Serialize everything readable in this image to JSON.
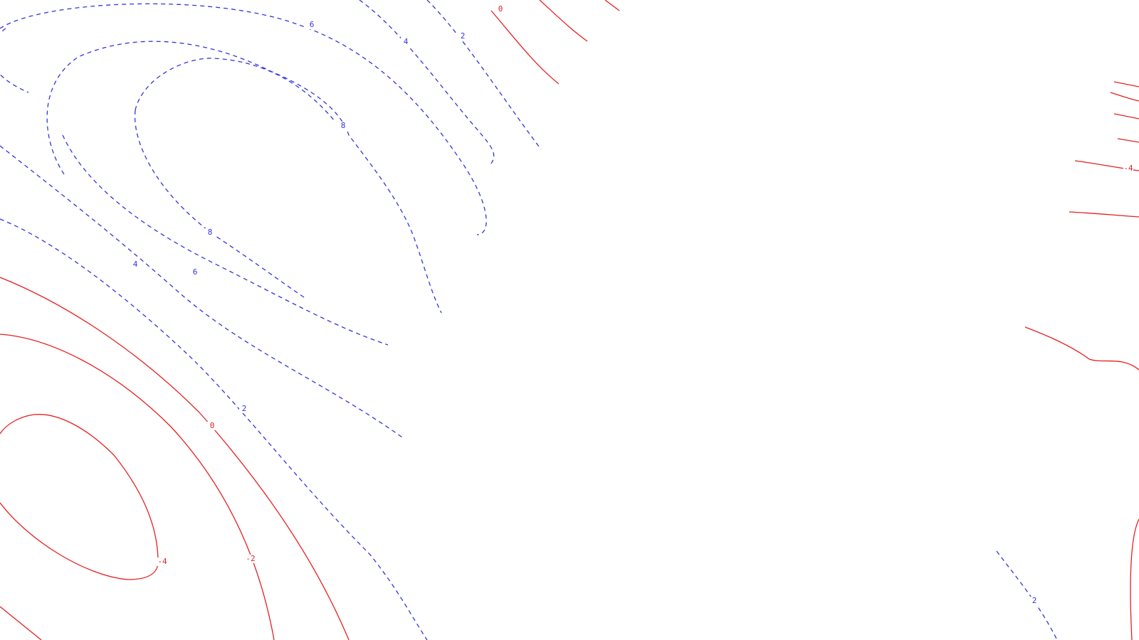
{
  "chart_data": {
    "type": "contour",
    "title": "",
    "xlabel": "",
    "ylabel": "",
    "grid": false,
    "legend": "none",
    "colors": {
      "positive": "#3333dd",
      "nonpositive": "#e62020"
    },
    "line_styles": {
      "positive": "dashed",
      "nonpositive": "solid"
    },
    "levels": [
      -4,
      -2,
      0,
      2,
      4,
      6,
      8
    ],
    "contour_labels": [
      {
        "id": "neg4-left",
        "text": "-4",
        "level": -4
      },
      {
        "id": "neg2-left",
        "text": "-2",
        "level": -2
      },
      {
        "id": "zero-left",
        "text": "0",
        "level": 0
      },
      {
        "id": "two-left",
        "text": "2",
        "level": 2
      },
      {
        "id": "four-left",
        "text": "4",
        "level": 4
      },
      {
        "id": "six-left",
        "text": "6",
        "level": 6
      },
      {
        "id": "eight-lower",
        "text": "8",
        "level": 8
      },
      {
        "id": "eight-upper",
        "text": "8",
        "level": 8
      },
      {
        "id": "six-top",
        "text": "6",
        "level": 6
      },
      {
        "id": "four-top",
        "text": "4",
        "level": 4
      },
      {
        "id": "two-top",
        "text": "2",
        "level": 2
      },
      {
        "id": "zero-top",
        "text": "0",
        "level": 0
      },
      {
        "id": "neg4-right",
        "text": "-4",
        "level": -4
      },
      {
        "id": "two-right",
        "text": "2",
        "level": 2
      }
    ]
  }
}
